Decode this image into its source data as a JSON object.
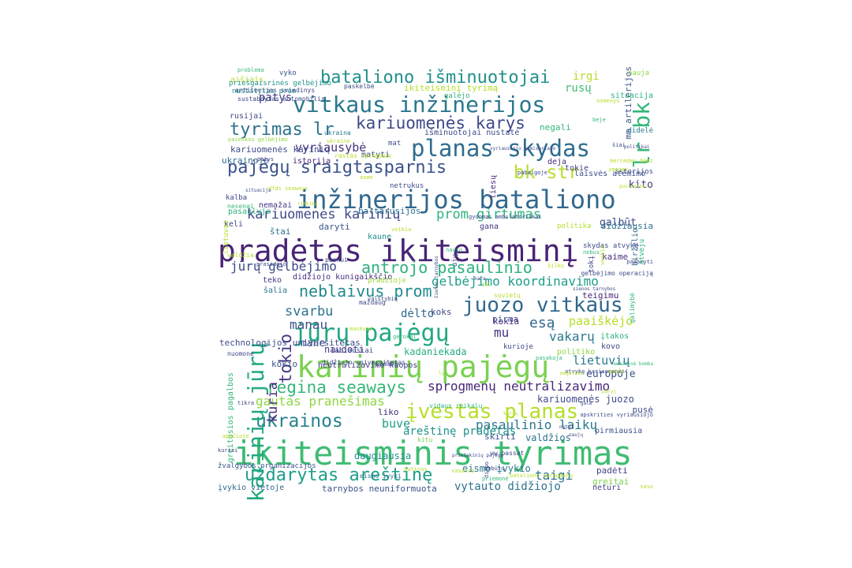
{
  "words": [
    {
      "text": "pradėtas ikiteisminį",
      "color": "#482475"
    },
    {
      "text": "ikiteisminis tyrimas",
      "color": "#3fbc73"
    },
    {
      "text": "karinių pajėgų",
      "color": "#7ad151"
    },
    {
      "text": "inžinerijos bataliono",
      "color": "#31688e"
    },
    {
      "text": "vitkaus inžinerijos",
      "color": "#2a788e"
    },
    {
      "text": "planas skydas",
      "color": "#2f6c8e"
    },
    {
      "text": "bataliono išminuotojai",
      "color": "#21908c"
    },
    {
      "text": "kariuomenės karys",
      "color": "#3e4a89"
    },
    {
      "text": "tyrimas lr",
      "color": "#2c728e"
    },
    {
      "text": "pajėgų sraigtasparnis",
      "color": "#3b528b"
    },
    {
      "text": "bk str",
      "color": "#b5de2b"
    },
    {
      "text": "lr bk",
      "color": "#35b779"
    },
    {
      "text": "juozo vitkaus",
      "color": "#31688e"
    },
    {
      "text": "jūrų pajėgų",
      "color": "#22a884"
    },
    {
      "text": "įvestas planas",
      "color": "#b5de2b"
    },
    {
      "text": "ukrainos",
      "color": "#26828e"
    },
    {
      "text": "uždarytas areštinę",
      "color": "#1f9e89"
    },
    {
      "text": "karinių jūrų",
      "color": "#22a884"
    },
    {
      "text": "antrojo pasaulinio",
      "color": "#2db27d"
    },
    {
      "text": "regina seaways",
      "color": "#35b779"
    },
    {
      "text": "neblaivus prom",
      "color": "#23898e"
    },
    {
      "text": "prom girtumas",
      "color": "#2db27d"
    },
    {
      "text": "kariuomenės karinių",
      "color": "#3e4a89"
    },
    {
      "text": "jūrų gelbėjimo",
      "color": "#3e4a89"
    },
    {
      "text": "gelbėjimo koordinavimo",
      "color": "#1f9e89"
    },
    {
      "text": "sprogmenų neutralizavimo",
      "color": "#482878"
    },
    {
      "text": "gautas pranešimas",
      "color": "#8fd744"
    },
    {
      "text": "pasaulinio laikų",
      "color": "#2a788e"
    },
    {
      "text": "tokio",
      "color": "#453781"
    },
    {
      "text": "kuria",
      "color": "#472d7b"
    },
    {
      "text": "svarbu",
      "color": "#2c728e"
    },
    {
      "text": "manau",
      "color": "#3b528b"
    },
    {
      "text": "vakarų",
      "color": "#2a788e"
    },
    {
      "text": "esą",
      "color": "#31688e"
    },
    {
      "text": "mu",
      "color": "#46337e"
    },
    {
      "text": "paaiškėjo",
      "color": "#b5de2b"
    },
    {
      "text": "lietuvių",
      "color": "#2a788e"
    },
    {
      "text": "europoje",
      "color": "#3b528b"
    },
    {
      "text": "vyriausybė",
      "color": "#46337e"
    },
    {
      "text": "patys",
      "color": "#433e85"
    },
    {
      "text": "irgi",
      "color": "#b5de2b"
    },
    {
      "text": "rusų",
      "color": "#3fbc73"
    },
    {
      "text": "taigi",
      "color": "#2c728e"
    },
    {
      "text": "buvę",
      "color": "#1f9e89"
    },
    {
      "text": "areštinę pradėtas",
      "color": "#21908c"
    },
    {
      "text": "vytauto didžiojo",
      "color": "#2c728e"
    },
    {
      "text": "kariuomenės juozo",
      "color": "#3e4a89"
    },
    {
      "text": "mane",
      "color": "#3b528b"
    },
    {
      "text": "dėlto",
      "color": "#31688e"
    },
    {
      "text": "kito",
      "color": "#433e85"
    },
    {
      "text": "galbūt",
      "color": "#3e4a89"
    },
    {
      "text": "didžiausia",
      "color": "#2c728e"
    },
    {
      "text": "kaime",
      "color": "#472d7b"
    },
    {
      "text": "teigimu",
      "color": "#482878"
    },
    {
      "text": "kokia",
      "color": "#472d7b"
    },
    {
      "text": "koks",
      "color": "#3e4a89"
    },
    {
      "text": "pirma",
      "color": "#3e4a89"
    },
    {
      "text": "niekada",
      "color": "#22a884"
    },
    {
      "text": "kada",
      "color": "#2db27d"
    },
    {
      "text": "naudoti",
      "color": "#443983"
    },
    {
      "text": "kokio",
      "color": "#3b528b"
    },
    {
      "text": "liko",
      "color": "#472d7b"
    },
    {
      "text": "daugiausia",
      "color": "#21908c"
    },
    {
      "text": "valdžios",
      "color": "#2c728e"
    },
    {
      "text": "pirmiausia",
      "color": "#3b528b"
    },
    {
      "text": "pusė",
      "color": "#3e4a89"
    },
    {
      "text": "eismo įvykio",
      "color": "#2a788e"
    },
    {
      "text": "padėti",
      "color": "#433e85"
    },
    {
      "text": "greitai",
      "color": "#7ad151"
    },
    {
      "text": "neturi",
      "color": "#414487"
    },
    {
      "text": "skirti",
      "color": "#3b528b"
    },
    {
      "text": "kitu",
      "color": "#7ad151"
    },
    {
      "text": "tarnybos neuniformuota",
      "color": "#3b528b"
    },
    {
      "text": "įvykio vietoje",
      "color": "#31688e"
    },
    {
      "text": "žvalgybos organizacijos",
      "color": "#3b528b"
    },
    {
      "text": "didžiojo kunigaikščio",
      "color": "#472d7b"
    },
    {
      "text": "pradžioje",
      "color": "#a0da39"
    },
    {
      "text": "šalia",
      "color": "#2a788e"
    },
    {
      "text": "teko",
      "color": "#443983"
    },
    {
      "text": "istorija",
      "color": "#482475"
    },
    {
      "text": "tiesų",
      "color": "#472d7b"
    },
    {
      "text": "netrukus",
      "color": "#3e4a89"
    },
    {
      "text": "baltarusijos",
      "color": "#2c728e"
    },
    {
      "text": "daryti",
      "color": "#3b528b"
    },
    {
      "text": "politika",
      "color": "#b5de2b"
    },
    {
      "text": "gana",
      "color": "#453781"
    },
    {
      "text": "kaune",
      "color": "#21908c"
    },
    {
      "text": "nemažai",
      "color": "#443983"
    },
    {
      "text": "pasaulyje",
      "color": "#2db27d"
    },
    {
      "text": "keli",
      "color": "#414487"
    },
    {
      "text": "štai",
      "color": "#2c728e"
    },
    {
      "text": "kariuomenės karinių",
      "color": "#3e4a89"
    },
    {
      "text": "ukrainoje",
      "color": "#31688e"
    },
    {
      "text": "matyti",
      "color": "#3e4a89"
    },
    {
      "text": "mat",
      "color": "#3b528b"
    },
    {
      "text": "deja",
      "color": "#482878"
    },
    {
      "text": "tokie",
      "color": "#433e85"
    },
    {
      "text": "laisvės atėmimo",
      "color": "#3b528b"
    },
    {
      "text": "aišiais",
      "color": "#b5de2b"
    },
    {
      "text": "nustatytas prom",
      "color": "#21908c"
    },
    {
      "text": "negali",
      "color": "#35b779"
    },
    {
      "text": "išminuotojai nustatė",
      "color": "#3e4a89"
    },
    {
      "text": "mm artilerijos",
      "color": "#3b528b"
    },
    {
      "text": "situacija",
      "color": "#2db27d"
    },
    {
      "text": "nauja",
      "color": "#8fd744"
    },
    {
      "text": "vyko",
      "color": "#3b528b"
    },
    {
      "text": "problema",
      "color": "#35b779"
    },
    {
      "text": "paskelbė",
      "color": "#3e4a89"
    },
    {
      "text": "ikiteisminį tyrimą",
      "color": "#b5de2b"
    },
    {
      "text": "artilerijos sviedinys",
      "color": "#3e4a89"
    },
    {
      "text": "galėjo",
      "color": "#2db27d"
    },
    {
      "text": "ukraina",
      "color": "#2a788e"
    },
    {
      "text": "rastas sprogmuo",
      "color": "#b5de2b"
    },
    {
      "text": "paieškos gelbėjimo",
      "color": "#8fd744"
    },
    {
      "text": "lietuvai",
      "color": "#b5de2b"
    },
    {
      "text": "greitosios pagalbos",
      "color": "#35b779"
    },
    {
      "text": "neutralizavimo kuopos",
      "color": "#443983"
    },
    {
      "text": "birželio",
      "color": "#31688e"
    },
    {
      "text": "paskui",
      "color": "#3e4a89"
    },
    {
      "text": "technologijos universitetas",
      "color": "#3e4a89"
    },
    {
      "text": "įtakos",
      "color": "#2db27d"
    },
    {
      "text": "kovo",
      "color": "#3e4a89"
    },
    {
      "text": "politiko",
      "color": "#8fd744"
    },
    {
      "text": "ujų",
      "color": "#3e4a89"
    },
    {
      "text": "maždaug",
      "color": "#3e4a89"
    },
    {
      "text": "rusijai",
      "color": "#3e4a89"
    },
    {
      "text": "priešgaisrinės gelbėjimo",
      "color": "#21908c"
    },
    {
      "text": "patys",
      "color": "#433e85"
    },
    {
      "text": "kalba",
      "color": "#3e4a89"
    },
    {
      "text": "nesenai",
      "color": "#35b779"
    },
    {
      "text": "valdžia",
      "color": "#b5de2b"
    },
    {
      "text": "prasidėjo",
      "color": "#3e4a89"
    },
    {
      "text": "naujo",
      "color": "#35b779"
    },
    {
      "text": "skydas atvykę",
      "color": "#3e4a89"
    },
    {
      "text": "istorijos",
      "color": "#3e4a89"
    },
    {
      "text": "didelė",
      "color": "#2a788e"
    },
    {
      "text": "atveju",
      "color": "#2db27d"
    },
    {
      "text": "tokį",
      "color": "#3e4a89"
    },
    {
      "text": "labiausiai",
      "color": "#3e4a89"
    },
    {
      "text": "didžiojo universitetas",
      "color": "#3e4a89"
    },
    {
      "text": "nebūtų",
      "color": "#3e4a89"
    },
    {
      "text": "dirbo",
      "color": "#3e4a89"
    },
    {
      "text": "tikra",
      "color": "#3e4a89"
    },
    {
      "text": "putinas",
      "color": "#b5de2b"
    },
    {
      "text": "eismo įvykį",
      "color": "#2a788e"
    },
    {
      "text": "vidaus reikalų",
      "color": "#35b779"
    },
    {
      "text": "kurioje",
      "color": "#3e4a89"
    },
    {
      "text": "atvykę kariuomenės",
      "color": "#3e4a89"
    },
    {
      "text": "nuomone",
      "color": "#3e4a89"
    },
    {
      "text": "apskrities vyriausiojo",
      "color": "#3e4a89"
    },
    {
      "text": "priemonė",
      "color": "#35b779"
    },
    {
      "text": "savo",
      "color": "#b5de2b"
    },
    {
      "text": "sovietų",
      "color": "#b5de2b"
    },
    {
      "text": "galimybė",
      "color": "#35b779"
    },
    {
      "text": "gelbėjimo operaciją",
      "color": "#3e4a89"
    },
    {
      "text": "padaryti",
      "color": "#3e4a89"
    },
    {
      "text": "veikla",
      "color": "#b5de2b"
    },
    {
      "text": "nebus",
      "color": "#35b779"
    },
    {
      "text": "maskvos",
      "color": "#b5de2b"
    },
    {
      "text": "gerokai",
      "color": "#35b779"
    },
    {
      "text": "būdavo",
      "color": "#3e4a89"
    },
    {
      "text": "veikia",
      "color": "#b5de2b"
    },
    {
      "text": "beje",
      "color": "#35b779"
    },
    {
      "text": "asmenys",
      "color": "#b5de2b"
    },
    {
      "text": "sustabdytas automobilis",
      "color": "#3e4a89"
    },
    {
      "text": "šiai",
      "color": "#3e4a89"
    },
    {
      "text": "kuriai",
      "color": "#3e4a89"
    },
    {
      "text": "dfds seaways",
      "color": "#b5de2b"
    },
    {
      "text": "rinkimų",
      "color": "#b5de2b"
    },
    {
      "text": "šienos tarnybos",
      "color": "#3e4a89"
    },
    {
      "text": "vyriausiojo komisariato",
      "color": "#3e4a89"
    },
    {
      "text": "gydomas ambulatoriškai",
      "color": "#3e4a89"
    },
    {
      "text": "pabaigoje",
      "color": "#3e4a89"
    },
    {
      "text": "kara",
      "color": "#3e4a89"
    },
    {
      "text": "valstybių",
      "color": "#3e4a89"
    },
    {
      "text": "pasakoja",
      "color": "#35b779"
    },
    {
      "text": "megalima",
      "color": "#b5de2b"
    },
    {
      "text": "aviacinė bomba",
      "color": "#35b779"
    },
    {
      "text": "paryj",
      "color": "#b5de2b"
    },
    {
      "text": "netgi",
      "color": "#3e4a89"
    },
    {
      "text": "vasario",
      "color": "#b5de2b"
    },
    {
      "text": "priešakinių pajėgų",
      "color": "#3e4a89"
    },
    {
      "text": "bataliono sprogmenų",
      "color": "#b5de2b"
    },
    {
      "text": "vw passat",
      "color": "#3e4a89"
    },
    {
      "text": "mokykl",
      "color": "#b5de2b"
    },
    {
      "text": "asme",
      "color": "#b5de2b"
    },
    {
      "text": "šilku",
      "color": "#b5de2b"
    },
    {
      "text": "politikai",
      "color": "#3e4a89"
    },
    {
      "text": "mercedes benz",
      "color": "#b5de2b"
    },
    {
      "text": "puolantėsi",
      "color": "#b5de2b"
    },
    {
      "text": "zmones",
      "color": "#b5de2b"
    },
    {
      "text": "ukraina",
      "color": "#b5de2b"
    },
    {
      "text": "situacija",
      "color": "#3e4a89"
    },
    {
      "text": "tai",
      "color": "#b5de2b"
    },
    {
      "text": "gale",
      "color": "#3e4a89"
    },
    {
      "text": "kurių",
      "color": "#b5de2b"
    },
    {
      "text": "ly",
      "color": "#b5de2b"
    },
    {
      "text": "naujų",
      "color": "#3e4a89"
    },
    {
      "text": "sienos tarnybos",
      "color": "#3e4a89"
    },
    {
      "text": "apačioje",
      "color": "#b5de2b"
    }
  ]
}
